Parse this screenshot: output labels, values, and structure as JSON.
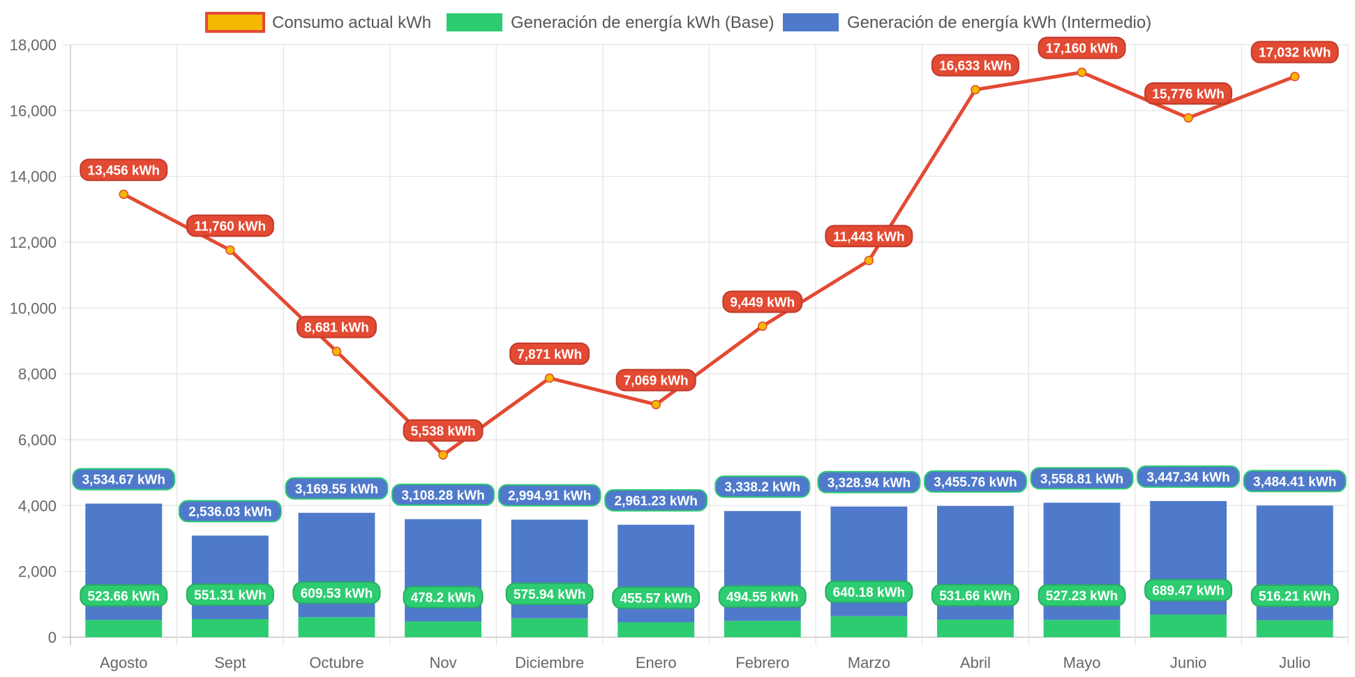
{
  "chart_data": {
    "type": "bar",
    "categories": [
      "Agosto",
      "Sept",
      "Octubre",
      "Nov",
      "Diciembre",
      "Enero",
      "Febrero",
      "Marzo",
      "Abril",
      "Mayo",
      "Junio",
      "Julio"
    ],
    "ylim": [
      0,
      18000
    ],
    "yticks": [
      0,
      2000,
      4000,
      6000,
      8000,
      10000,
      12000,
      14000,
      16000,
      18000
    ],
    "ytick_labels": [
      "0",
      "2,000",
      "4,000",
      "6,000",
      "8,000",
      "10,000",
      "12,000",
      "14,000",
      "16,000",
      "18,000"
    ],
    "grid": true,
    "legend_position": "top",
    "series": [
      {
        "name": "Consumo actual kWh",
        "kind": "line",
        "color": "#e34a33",
        "point_color": "#f5b800",
        "values": [
          13456,
          11760,
          8681,
          5538,
          7871,
          7069,
          9449,
          11443,
          16633,
          17160,
          15776,
          17032
        ],
        "labels": [
          "13,456 kWh",
          "11,760 kWh",
          "8,681 kWh",
          "5,538 kWh",
          "7,871 kWh",
          "7,069 kWh",
          "9,449 kWh",
          "11,443 kWh",
          "16,633 kWh",
          "17,160 kWh",
          "15,776 kWh",
          "17,032 kWh"
        ]
      },
      {
        "name": "Generación de energía kWh (Base)",
        "kind": "bar",
        "color": "#2ecc71",
        "values": [
          523.66,
          551.31,
          609.53,
          478.2,
          575.94,
          455.57,
          494.55,
          640.18,
          531.66,
          527.23,
          689.47,
          516.21
        ],
        "labels": [
          "523.66 kWh",
          "551.31 kWh",
          "609.53 kWh",
          "478.2 kWh",
          "575.94 kWh",
          "455.57 kWh",
          "494.55 kWh",
          "640.18 kWh",
          "531.66 kWh",
          "527.23 kWh",
          "689.47 kWh",
          "516.21 kWh"
        ]
      },
      {
        "name": "Generación de energía kWh (Intermedio)",
        "kind": "bar",
        "color": "#4f7acb",
        "values": [
          3534.67,
          2536.03,
          3169.55,
          3108.28,
          2994.91,
          2961.23,
          3338.2,
          3328.94,
          3455.76,
          3558.81,
          3447.34,
          3484.41
        ],
        "labels": [
          "3,534.67 kWh",
          "2,536.03 kWh",
          "3,169.55 kWh",
          "3,108.28 kWh",
          "2,994.91 kWh",
          "2,961.23 kWh",
          "3,338.2 kWh",
          "3,328.94 kWh",
          "3,455.76 kWh",
          "3,558.81 kWh",
          "3,447.34 kWh",
          "3,484.41 kWh"
        ]
      }
    ]
  }
}
